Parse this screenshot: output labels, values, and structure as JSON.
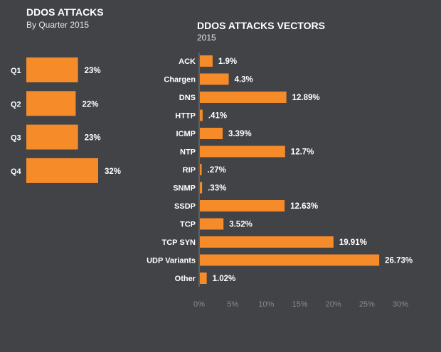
{
  "colors": {
    "background": "#414346",
    "bar": "#f68b2a",
    "axis": "#7a7c80"
  },
  "chart_data": [
    {
      "type": "bar",
      "orientation": "horizontal",
      "title": "DDOS ATTACKS",
      "subtitle": "By Quarter 2015",
      "categories": [
        "Q1",
        "Q2",
        "Q3",
        "Q4"
      ],
      "values": [
        23,
        22,
        23,
        32
      ],
      "value_labels": [
        "23%",
        "22%",
        "23%",
        "32%"
      ],
      "xlim": [
        0,
        32
      ]
    },
    {
      "type": "bar",
      "orientation": "horizontal",
      "title": "DDOS ATTACKS VECTORS",
      "subtitle": "2015",
      "categories": [
        "ACK",
        "Chargen",
        "DNS",
        "HTTP",
        "ICMP",
        "NTP",
        "RIP",
        "SNMP",
        "SSDP",
        "TCP",
        "TCP SYN",
        "UDP Variants",
        "Other"
      ],
      "values": [
        1.9,
        4.3,
        12.89,
        0.41,
        3.39,
        12.7,
        0.27,
        0.33,
        12.63,
        3.52,
        19.91,
        26.73,
        1.02
      ],
      "value_labels": [
        "1.9%",
        "4.3%",
        "12.89%",
        ".41%",
        "3.39%",
        "12.7%",
        ".27%",
        ".33%",
        "12.63%",
        "3.52%",
        "19.91%",
        "26.73%",
        "1.02%"
      ],
      "xlim": [
        0,
        30
      ],
      "xticks": [
        0,
        5,
        10,
        15,
        20,
        25,
        30
      ],
      "xtick_labels": [
        "0%",
        "5%",
        "10%",
        "15%",
        "20%",
        "25%",
        "30%"
      ]
    }
  ]
}
